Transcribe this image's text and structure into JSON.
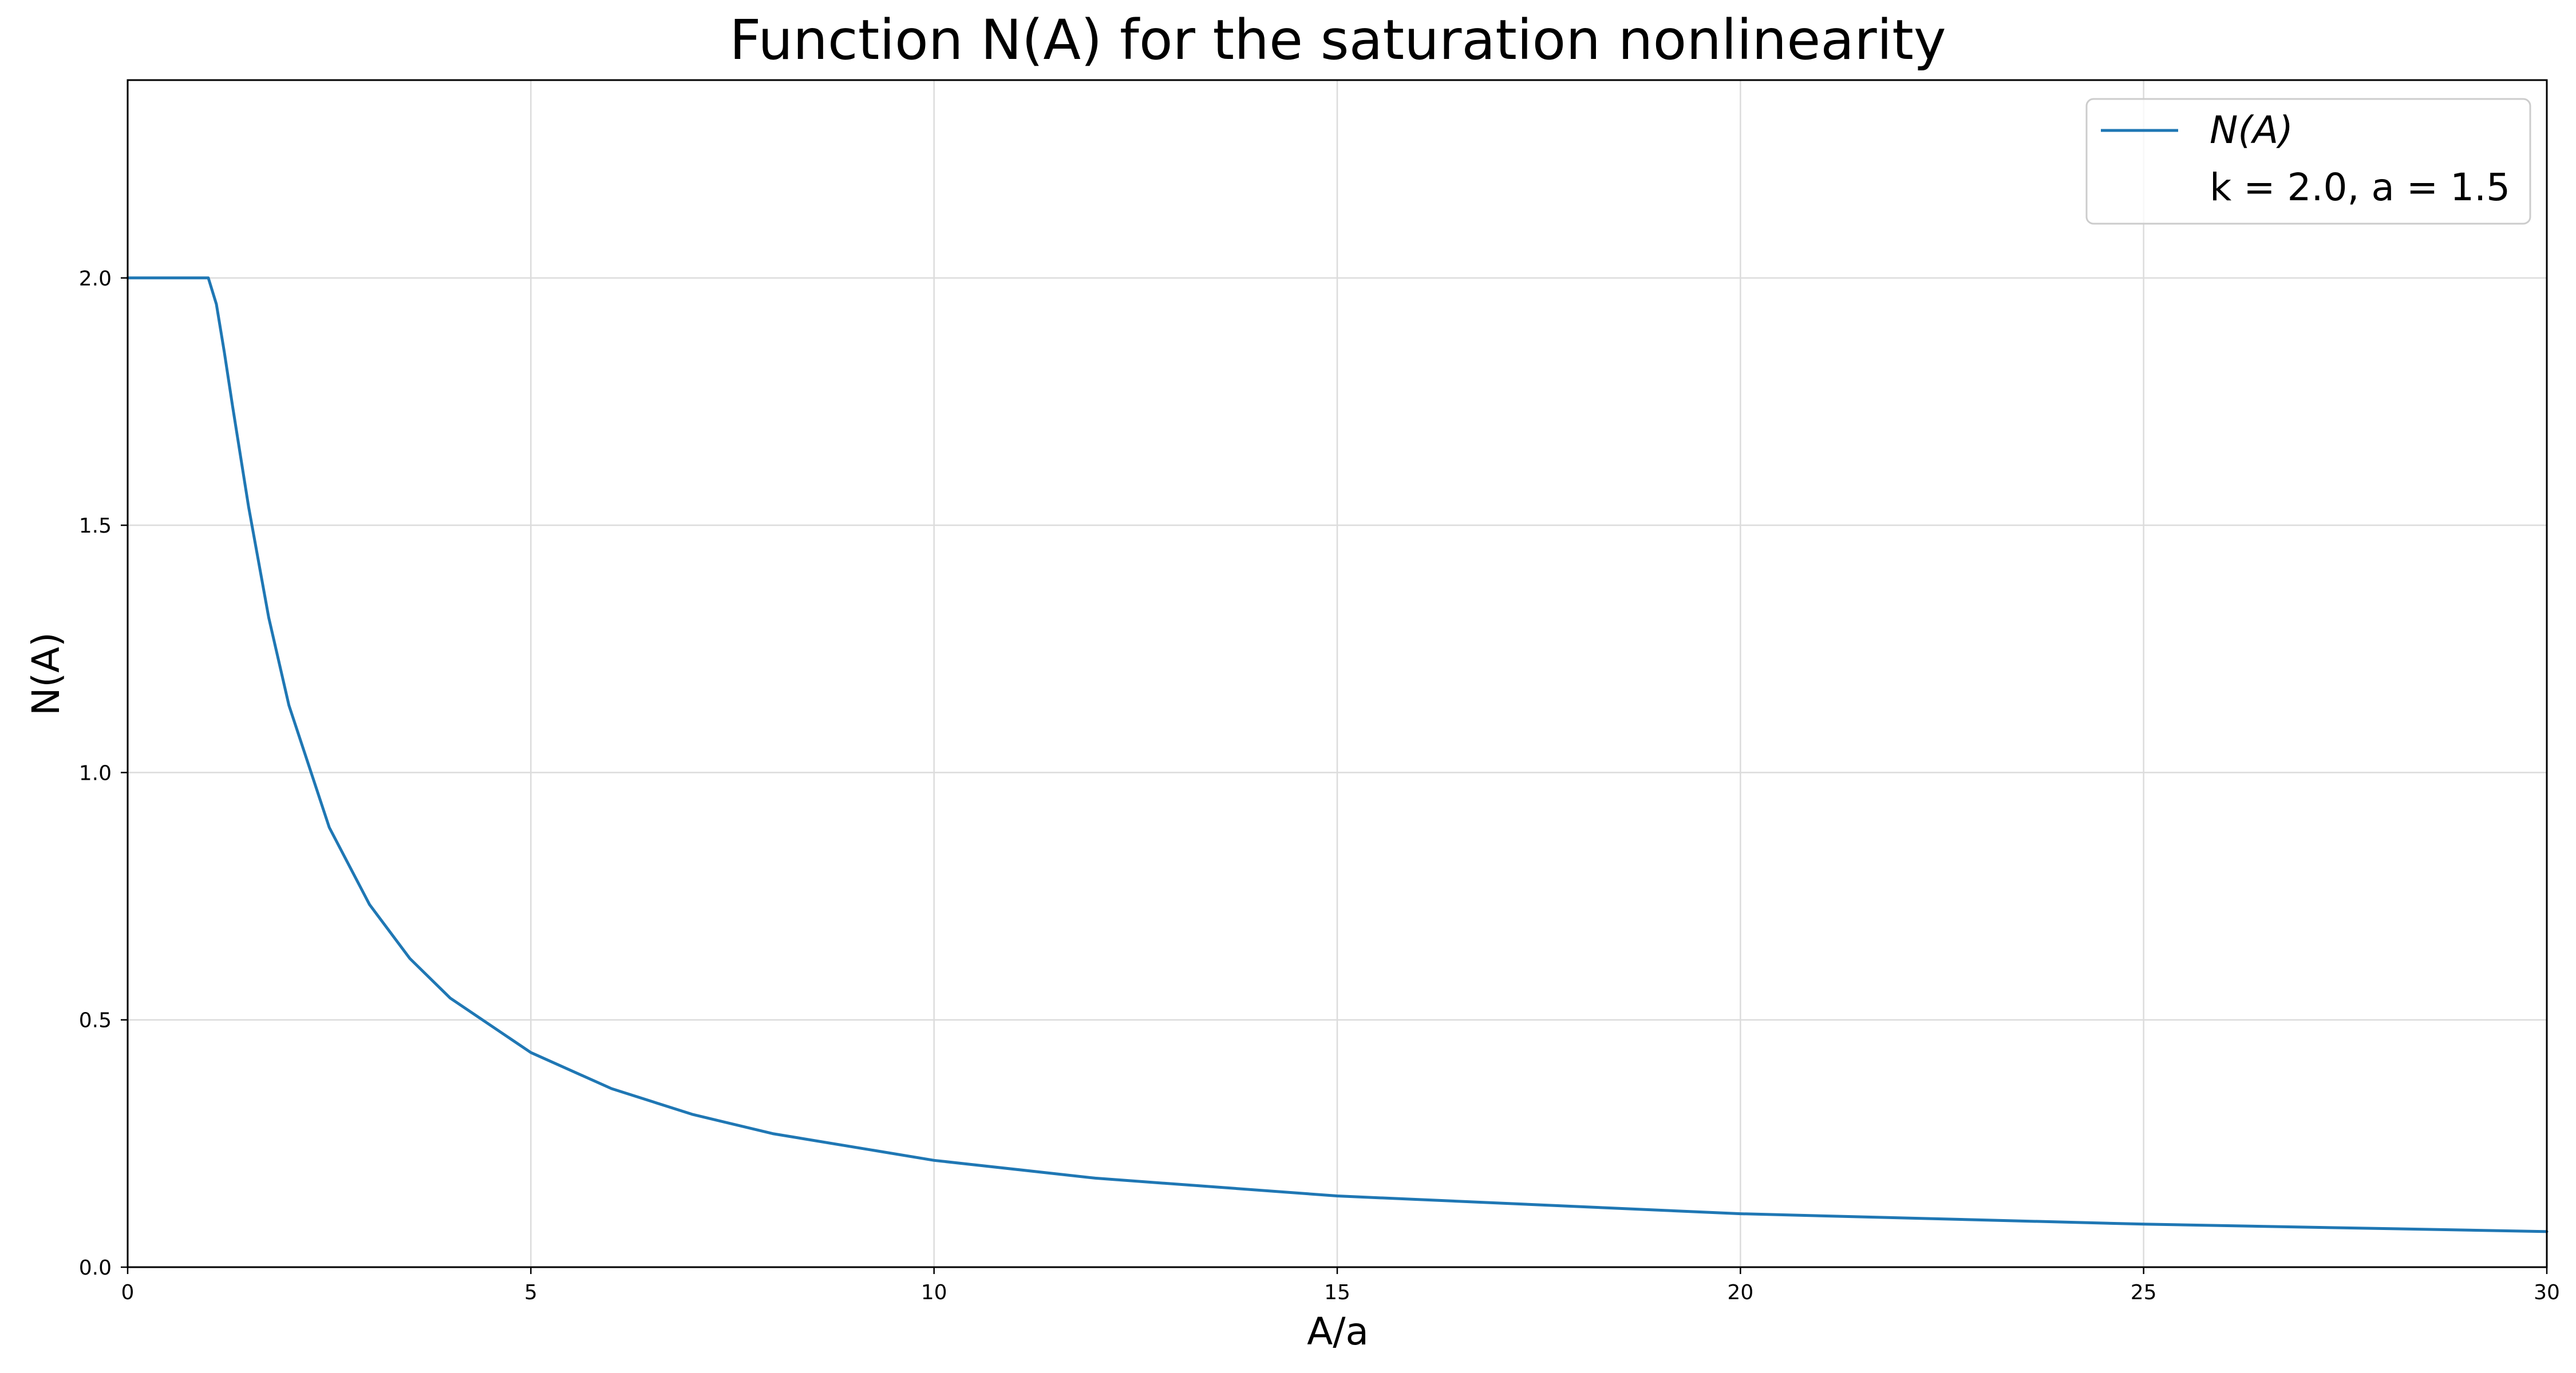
{
  "chart_data": {
    "type": "line",
    "title": "Function N(A) for the saturation nonlinearity",
    "xlabel": "A/a",
    "ylabel": "N(A)",
    "xlim": [
      0,
      30
    ],
    "ylim": [
      0,
      2.4
    ],
    "xticks": [
      0,
      5,
      10,
      15,
      20,
      25,
      30
    ],
    "xtick_labels": [
      "0",
      "5",
      "10",
      "15",
      "20",
      "25",
      "30"
    ],
    "yticks": [
      0.0,
      0.5,
      1.0,
      1.5,
      2.0
    ],
    "ytick_labels": [
      "0.0",
      "0.5",
      "1.0",
      "1.5",
      "2.0"
    ],
    "grid": true,
    "legend_position": "top-right",
    "series": [
      {
        "name": "N(A)",
        "color": "#1f77b4",
        "x": [
          0,
          0.5,
          1.0,
          1.1,
          1.2,
          1.3,
          1.5,
          1.75,
          2.0,
          2.5,
          3.0,
          3.5,
          4.0,
          5.0,
          6.0,
          7.0,
          8.0,
          10.0,
          12.0,
          15.0,
          20.0,
          25.0,
          30.0
        ],
        "y": [
          2.0,
          2.0,
          2.0,
          1.947,
          1.849,
          1.742,
          1.537,
          1.313,
          1.136,
          0.889,
          0.733,
          0.624,
          0.544,
          0.434,
          0.361,
          0.309,
          0.27,
          0.216,
          0.18,
          0.144,
          0.108,
          0.087,
          0.072
        ]
      }
    ],
    "legend_entries": [
      {
        "label": "N(A)",
        "has_line": true
      },
      {
        "label": "k = 2.0, a = 1.5",
        "has_line": false
      }
    ]
  }
}
